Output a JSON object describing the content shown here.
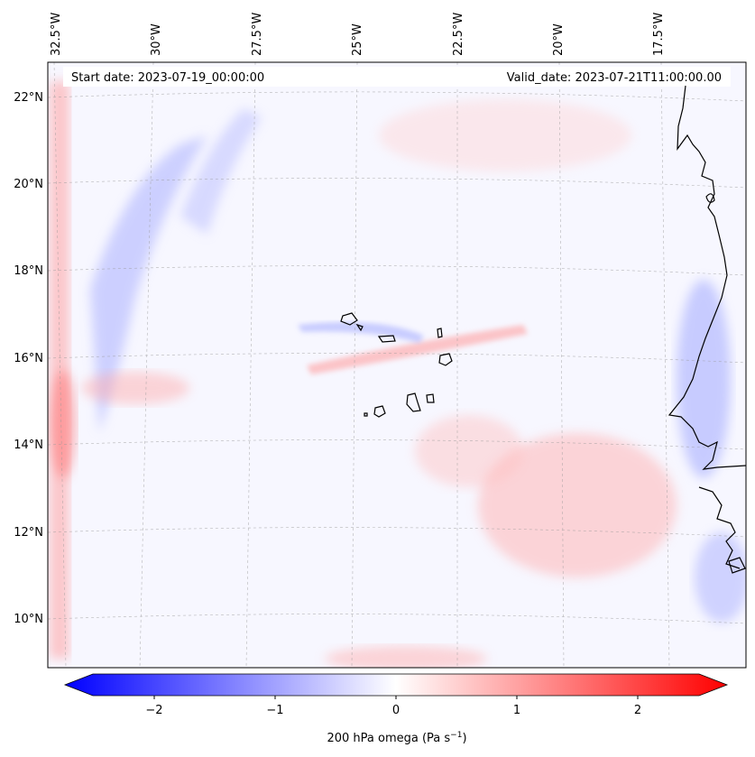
{
  "map": {
    "start_date_label": "Start date: 2023-07-19_00:00:00",
    "valid_date_label": "Valid_date: 2023-07-21T11:00:00.00",
    "lon_ticks": [
      "32.5°W",
      "30°W",
      "27.5°W",
      "25°W",
      "22.5°W",
      "20°W",
      "17.5°W"
    ],
    "lat_ticks": [
      "22°N",
      "20°N",
      "18°N",
      "16°N",
      "14°N",
      "12°N",
      "10°N"
    ]
  },
  "colorbar": {
    "ticks": [
      "−2",
      "−1",
      "0",
      "1",
      "2"
    ],
    "label_prefix": "200 hPa omega (Pa s",
    "label_exponent": "−1",
    "label_suffix": ")",
    "colors": {
      "negative": "#0000ff",
      "zero": "#ffffff",
      "positive": "#ff0000"
    }
  }
}
